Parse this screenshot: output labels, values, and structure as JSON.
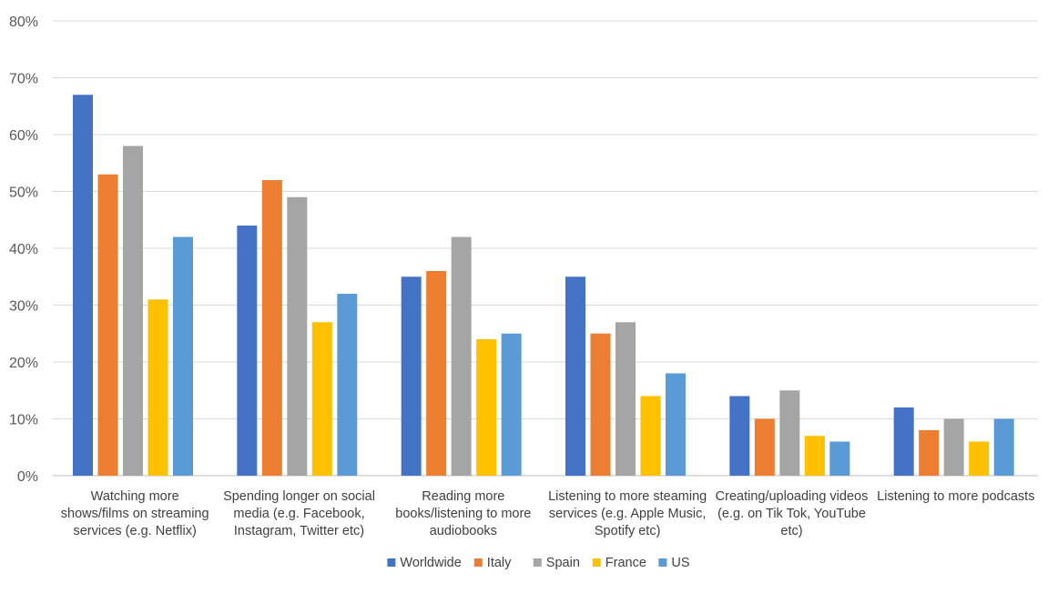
{
  "chart_data": {
    "type": "bar",
    "title": "",
    "xlabel": "",
    "ylabel": "",
    "ylim": [
      0,
      80
    ],
    "y_tick_step": 10,
    "y_tick_format": "percent",
    "grid": true,
    "legend_position": "bottom",
    "categories": [
      "Watching more shows/films on streaming services (e.g. Netflix)",
      "Spending longer on social media (e.g. Facebook, Instagram, Twitter etc)",
      "Reading more books/listening to more audiobooks",
      "Listening to more steaming services (e.g. Apple Music, Spotify etc)",
      "Creating/uploading videos (e.g. on Tik Tok, YouTube etc)",
      "Listening to more podcasts"
    ],
    "category_label_lines": [
      [
        "Watching more",
        "shows/films on streaming",
        "services (e.g. Netflix)"
      ],
      [
        "Spending longer on social",
        "media (e.g. Facebook,",
        "Instagram, Twitter etc)"
      ],
      [
        "Reading more",
        "books/listening to more",
        "audiobooks"
      ],
      [
        "Listening to more steaming",
        "services (e.g. Apple Music,",
        "Spotify etc)"
      ],
      [
        "Creating/uploading videos",
        "(e.g. on Tik Tok, YouTube",
        "etc)"
      ],
      [
        "Listening to more podcasts"
      ]
    ],
    "series": [
      {
        "name": "Worldwide",
        "color": "#4472C4",
        "values": [
          67,
          44,
          35,
          35,
          14,
          12
        ]
      },
      {
        "name": "Italy",
        "color": "#ED7D31",
        "values": [
          53,
          52,
          36,
          25,
          10,
          8
        ]
      },
      {
        "name": "Spain",
        "color": "#A5A5A5",
        "values": [
          58,
          49,
          42,
          27,
          15,
          10
        ]
      },
      {
        "name": "France",
        "color": "#FFC000",
        "values": [
          31,
          27,
          24,
          14,
          7,
          6
        ]
      },
      {
        "name": "US",
        "color": "#5B9BD5",
        "values": [
          42,
          32,
          25,
          18,
          6,
          10
        ]
      }
    ]
  }
}
